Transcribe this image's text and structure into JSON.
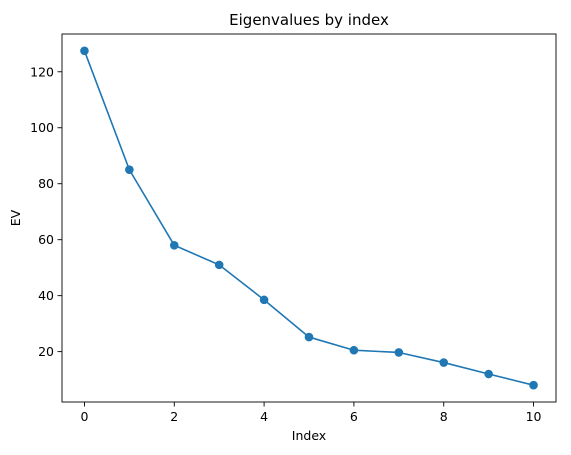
{
  "chart_data": {
    "type": "line",
    "title": "Eigenvalues by index",
    "xlabel": "Index",
    "ylabel": "EV",
    "x": [
      0,
      1,
      2,
      3,
      4,
      5,
      6,
      7,
      8,
      9,
      10
    ],
    "series": [
      {
        "values": [
          127.5,
          85.0,
          58.0,
          51.0,
          38.5,
          25.2,
          20.5,
          19.7,
          16.1,
          12.0,
          8.0
        ],
        "color": "#1f77b4",
        "marker": "circle"
      }
    ],
    "xticks": [
      0,
      2,
      4,
      6,
      8,
      10
    ],
    "yticks": [
      20,
      40,
      60,
      80,
      100,
      120
    ],
    "xlim": [
      -0.5,
      10.5
    ],
    "ylim": [
      2.0,
      133.5
    ],
    "grid": false,
    "legend": "none"
  }
}
